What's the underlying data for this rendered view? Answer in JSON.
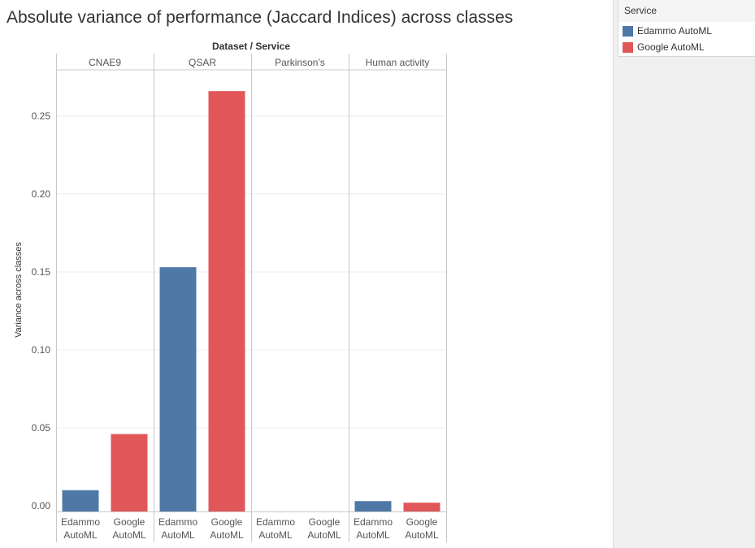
{
  "title": "Absolute variance of performance (Jaccard Indices) across classes",
  "legend": {
    "title": "Service",
    "items": [
      {
        "label": "Edammo AutoML",
        "color": "#4e79a7"
      },
      {
        "label": "Google AutoML",
        "color": "#e15759"
      }
    ]
  },
  "chart_data": {
    "type": "bar",
    "title": "Absolute variance of performance (Jaccard Indices) across classes",
    "header": "Dataset  /  Service",
    "ylabel": "Variance across classes",
    "ylim": [
      0,
      0.28
    ],
    "yticks": [
      "0.00",
      "0.05",
      "0.10",
      "0.15",
      "0.20",
      "0.25"
    ],
    "grid": true,
    "legend_position": "top-right",
    "groups": [
      "CNAE9",
      "QSAR",
      "Parkinson’s",
      "Human activity"
    ],
    "series_categories": [
      [
        "Edammo",
        "AutoML"
      ],
      [
        "Google",
        "AutoML"
      ]
    ],
    "series": [
      {
        "name": "Edammo AutoML",
        "color": "#4e79a7",
        "values": [
          0.01,
          0.153,
          0.0,
          0.003
        ]
      },
      {
        "name": "Google AutoML",
        "color": "#e15759",
        "values": [
          0.046,
          0.266,
          0.0,
          0.002
        ]
      }
    ]
  }
}
